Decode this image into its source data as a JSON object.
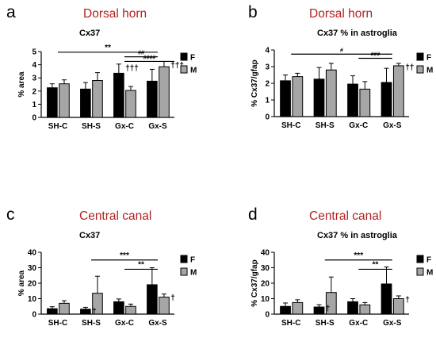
{
  "colors": {
    "F": "#000000",
    "M": "#a6a6a6",
    "region_title": "#b22222"
  },
  "legend": [
    "F",
    "M"
  ],
  "chart_data": [
    {
      "type": "bar",
      "panel": "a",
      "region": "Dorsal horn",
      "title": "Cx37",
      "ylabel": "% area",
      "ylim": [
        0,
        5
      ],
      "yticks": [
        0,
        1,
        2,
        3,
        4,
        5
      ],
      "categories": [
        "SH-C",
        "SH-S",
        "Gx-C",
        "Gx-S"
      ],
      "series": [
        {
          "name": "F",
          "values": [
            2.25,
            2.15,
            3.35,
            2.75
          ],
          "errors": [
            0.3,
            0.5,
            0.7,
            0.9
          ]
        },
        {
          "name": "M",
          "values": [
            2.55,
            2.8,
            2.05,
            3.85
          ],
          "errors": [
            0.3,
            0.6,
            0.3,
            0.4
          ]
        }
      ],
      "group_marks": [
        {
          "group": 2,
          "series": 0,
          "text": "†††"
        },
        {
          "group": 3,
          "series": 1,
          "text": "†††"
        }
      ],
      "brackets": [
        {
          "from": [
            0,
            0.5
          ],
          "to": [
            3,
            0.5
          ],
          "level": 4.95,
          "text": "**"
        },
        {
          "from": [
            2,
            0.5
          ],
          "to": [
            3,
            0.5
          ],
          "level": 4.6,
          "text": "##"
        },
        {
          "from": [
            2,
            0.5
          ],
          "to": [
            3,
            1
          ],
          "level": 4.25,
          "text": "####"
        }
      ]
    },
    {
      "type": "bar",
      "panel": "b",
      "region": "Dorsal horn",
      "title": "Cx37 % in astroglia",
      "ylabel": "% Cx37/gfap",
      "ylim": [
        0,
        4
      ],
      "yticks": [
        0,
        1,
        2,
        3,
        4
      ],
      "categories": [
        "SH-C",
        "SH-S",
        "Gx-C",
        "Gx-S"
      ],
      "series": [
        {
          "name": "F",
          "values": [
            2.15,
            2.25,
            1.95,
            2.05
          ],
          "errors": [
            0.35,
            0.7,
            0.5,
            0.85
          ]
        },
        {
          "name": "M",
          "values": [
            2.4,
            2.8,
            1.65,
            3.05
          ],
          "errors": [
            0.2,
            0.4,
            0.45,
            0.15
          ]
        }
      ],
      "group_marks": [
        {
          "group": 3,
          "series": 1,
          "text": "††"
        }
      ],
      "brackets": [
        {
          "from": [
            0,
            0.5
          ],
          "to": [
            3,
            0.5
          ],
          "level": 3.75,
          "text": "#"
        },
        {
          "from": [
            2,
            0.5
          ],
          "to": [
            3,
            0.5
          ],
          "level": 3.5,
          "text": "###"
        }
      ]
    },
    {
      "type": "bar",
      "panel": "c",
      "region": "Central canal",
      "title": "Cx37",
      "ylabel": "% area",
      "ylim": [
        0,
        40
      ],
      "yticks": [
        0,
        10,
        20,
        30,
        40
      ],
      "categories": [
        "SH-C",
        "SH-S",
        "Gx-C",
        "Gx-S"
      ],
      "series": [
        {
          "name": "F",
          "values": [
            3.5,
            3.2,
            8.0,
            19.0
          ],
          "errors": [
            1.3,
            1.2,
            1.8,
            11.0
          ]
        },
        {
          "name": "M",
          "values": [
            7.0,
            13.5,
            5.0,
            11.0
          ],
          "errors": [
            1.7,
            11.0,
            1.5,
            2.0
          ]
        }
      ],
      "group_marks": [
        {
          "group": 1,
          "series": 0,
          "text": "†"
        },
        {
          "group": 3,
          "series": 1,
          "text": "†"
        }
      ],
      "brackets": [
        {
          "from": [
            1,
            0.5
          ],
          "to": [
            3,
            0.5
          ],
          "level": 35,
          "text": "***"
        },
        {
          "from": [
            2,
            0.5
          ],
          "to": [
            3,
            0.5
          ],
          "level": 29,
          "text": "**"
        }
      ]
    },
    {
      "type": "bar",
      "panel": "d",
      "region": "Central canal",
      "title": "Cx37 % in astroglia",
      "ylabel": "% Cx37/gfap",
      "ylim": [
        0,
        40
      ],
      "yticks": [
        0,
        10,
        20,
        30,
        40
      ],
      "categories": [
        "SH-C",
        "SH-S",
        "Gx-C",
        "Gx-S"
      ],
      "series": [
        {
          "name": "F",
          "values": [
            5.0,
            4.6,
            8.0,
            19.5
          ],
          "errors": [
            2.2,
            1.5,
            2.0,
            11.0
          ]
        },
        {
          "name": "M",
          "values": [
            7.5,
            14.0,
            6.0,
            10.0
          ],
          "errors": [
            1.8,
            10.0,
            1.5,
            1.8
          ]
        }
      ],
      "group_marks": [
        {
          "group": 1,
          "series": 0,
          "text": "†"
        },
        {
          "group": 3,
          "series": 1,
          "text": "†"
        }
      ],
      "brackets": [
        {
          "from": [
            1,
            0.5
          ],
          "to": [
            3,
            0.5
          ],
          "level": 35,
          "text": "***"
        },
        {
          "from": [
            2,
            0.5
          ],
          "to": [
            3,
            0.5
          ],
          "level": 29,
          "text": "**"
        }
      ]
    }
  ]
}
